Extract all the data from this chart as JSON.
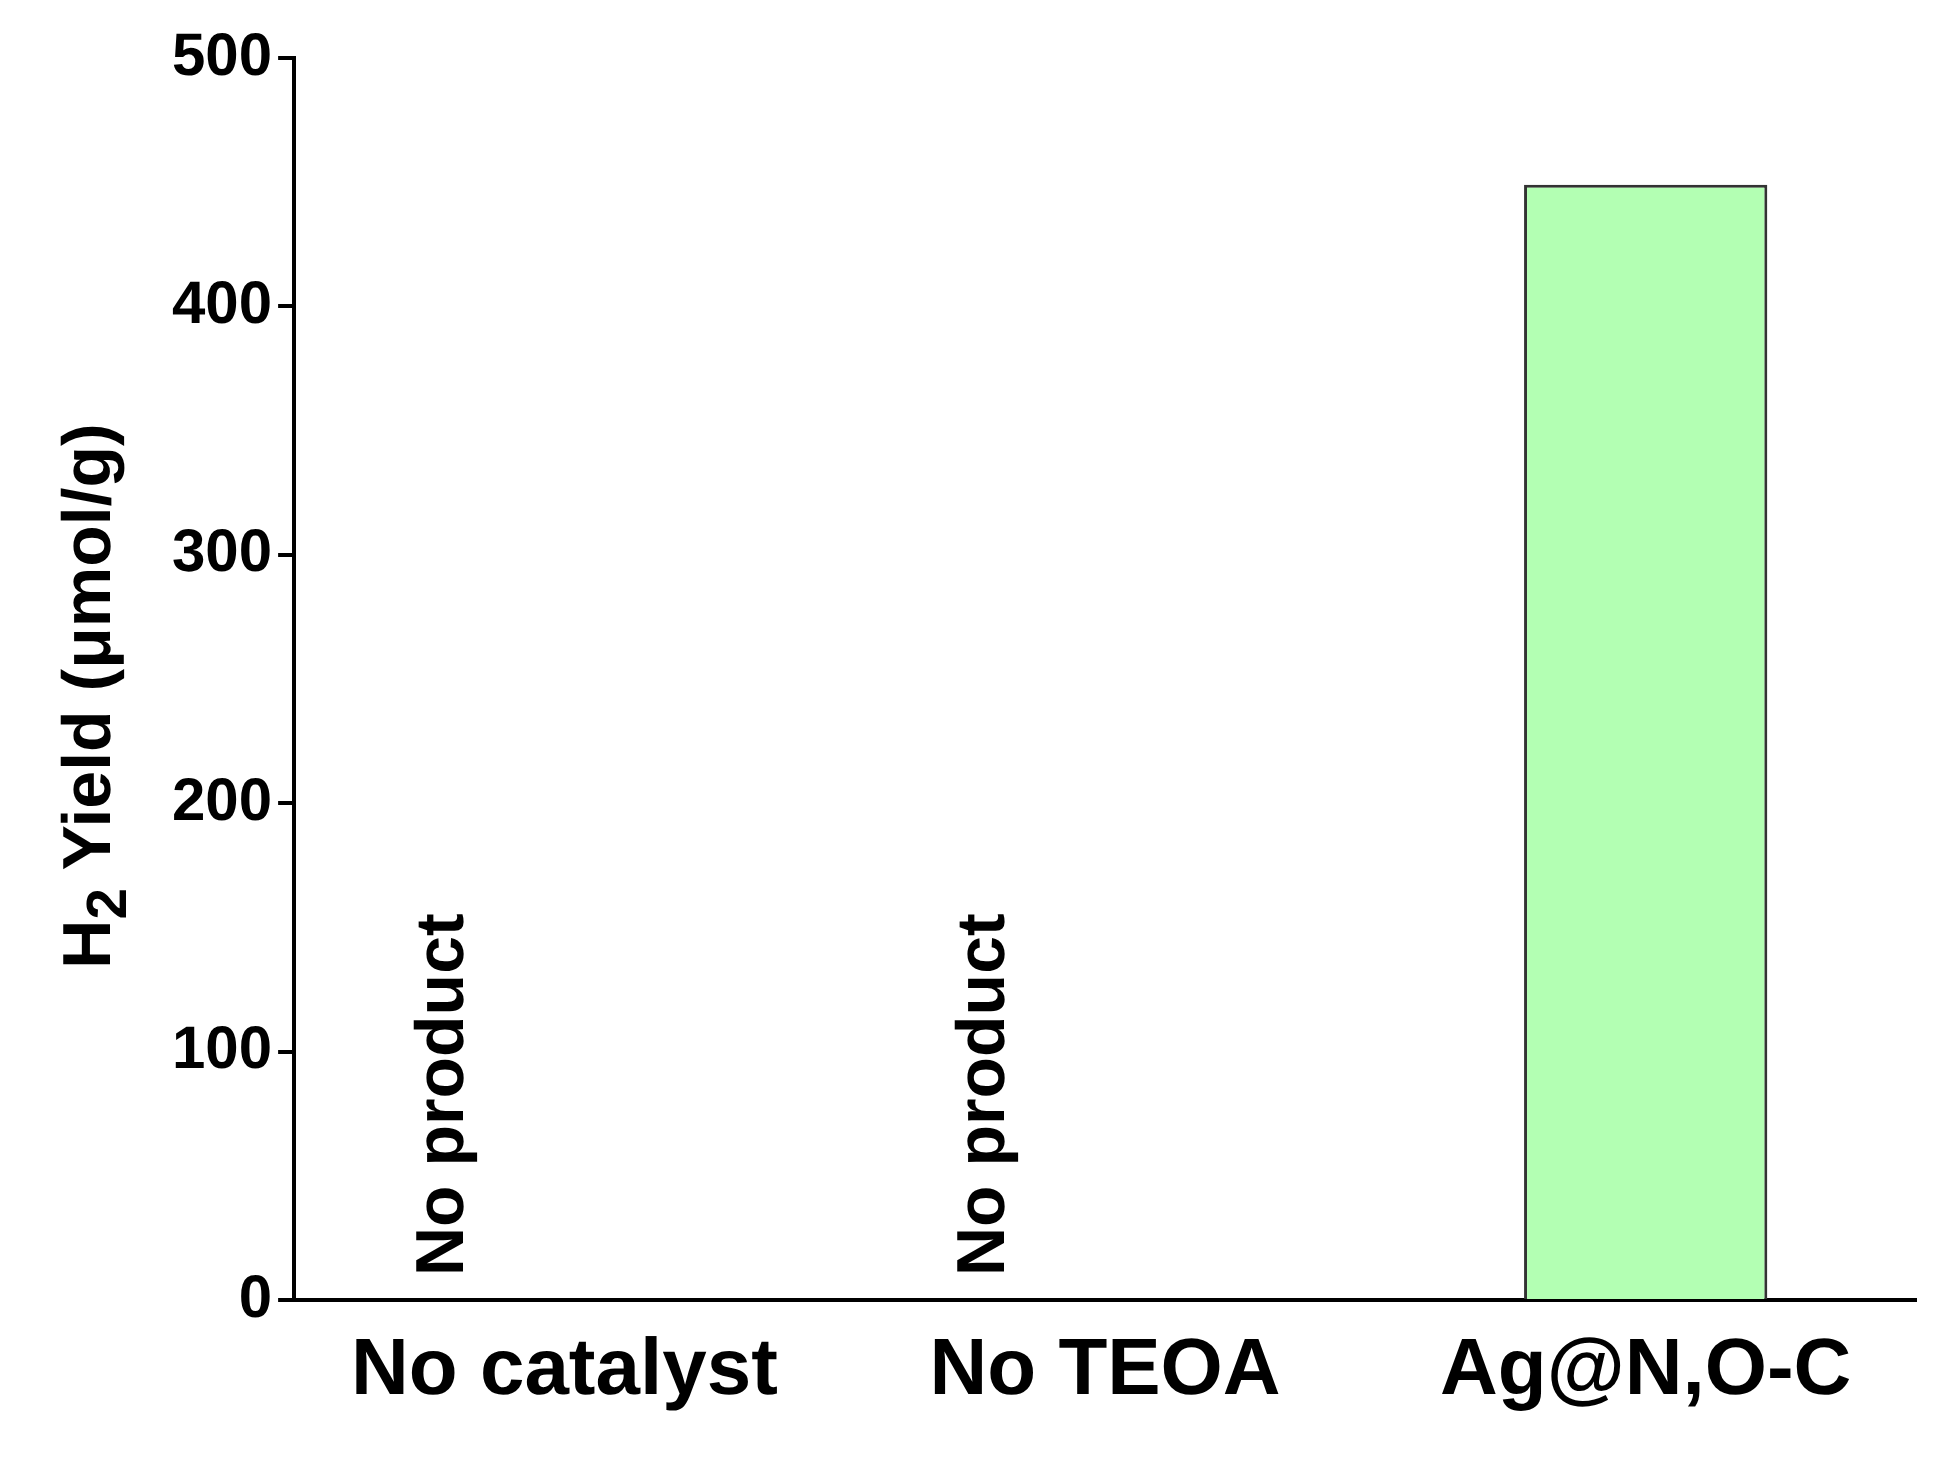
{
  "chart_data": {
    "type": "bar",
    "ylabel": "H$_{2}$ Yield (μmol/g)",
    "categories": [
      "No catalyst",
      "No TEOA",
      "Ag@N,O-C"
    ],
    "values": [
      0,
      0,
      449
    ],
    "color": "#b3ffb3",
    "ylim": [
      0,
      500
    ],
    "yticks": [
      0,
      100,
      200,
      300,
      400,
      500
    ],
    "grid": false,
    "legend": false,
    "annotations": [
      {
        "text": "No product",
        "x": "No catalyst",
        "y": 0
      },
      {
        "text": "No product",
        "x": "No TEOA",
        "y": 0
      }
    ]
  }
}
